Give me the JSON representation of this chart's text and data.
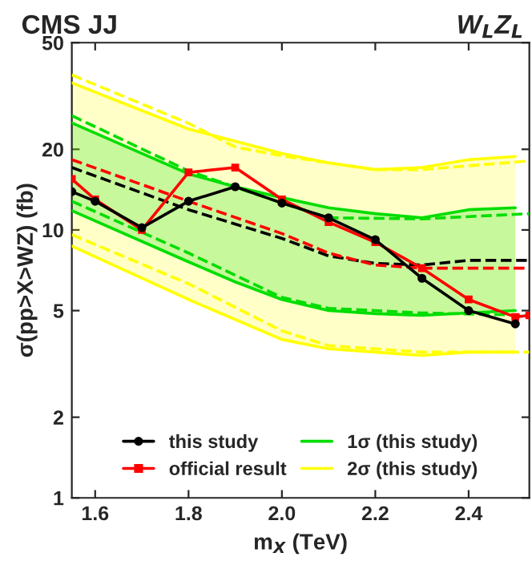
{
  "chart_data": {
    "type": "line",
    "title": "CMS JJ",
    "annotations": [
      "W$_{L}$Z$_{L}$"
    ],
    "xlabel": "m$_{X}$ (TeV)",
    "ylabel": "σ(pp>X>WZ) (fb)",
    "log": true,
    "xlim": [
      1.55,
      2.53
    ],
    "xticks": [
      1.6,
      1.8,
      {
        "value": 2.0,
        "label": "2.0"
      },
      2.2,
      2.4
    ],
    "ylim": [
      1,
      50
    ],
    "yticks": [
      1,
      2,
      5,
      10,
      20,
      50
    ],
    "grid": false,
    "legend": "bottom",
    "series": [
      {
        "color": "#ffff00",
        "x": [
          1.55,
          1.8,
          2.0,
          2.1,
          2.2,
          2.3,
          2.4,
          2.5
        ],
        "values": [
          null,
          null,
          null,
          null,
          null,
          null,
          null,
          null
        ],
        "lower": [
          8.7,
          5.5,
          3.9,
          3.6,
          3.5,
          3.4,
          3.5,
          3.5
        ],
        "upper": [
          35.4,
          23.8,
          19.3,
          17.8,
          16.8,
          17.1,
          18.3,
          18.8
        ]
      },
      {
        "color": "#00dd00",
        "x": [
          1.55,
          1.8,
          1.9,
          2.0,
          2.1,
          2.2,
          2.3,
          2.4,
          2.5
        ],
        "values": [
          null,
          null,
          null,
          null,
          null,
          null,
          null,
          null,
          null
        ],
        "lower": [
          11.8,
          7.6,
          6.4,
          5.5,
          5.0,
          4.87,
          4.8,
          4.9,
          5.0
        ],
        "upper": [
          25.1,
          16.2,
          14.5,
          13.2,
          12.1,
          11.5,
          11.1,
          11.9,
          12.1
        ]
      },
      {
        "name": "2σ (this study)",
        "color": "#ffff00",
        "line_style": "solid",
        "marker": "none",
        "x": [
          1.55,
          1.8,
          2.0,
          2.1,
          2.2,
          2.3,
          2.4,
          2.5
        ],
        "values": [
          35.4,
          23.8,
          19.3,
          17.8,
          16.8,
          17.1,
          18.3,
          18.8
        ]
      },
      {
        "color": "#ffff00",
        "line_style": "solid",
        "marker": "none",
        "x": [
          1.55,
          1.8,
          2.0,
          2.1,
          2.2,
          2.3,
          2.4,
          2.5
        ],
        "values": [
          8.7,
          5.5,
          3.9,
          3.6,
          3.5,
          3.4,
          3.5,
          3.5
        ]
      },
      {
        "name": "1σ (this study)",
        "color": "#00dd00",
        "line_style": "solid",
        "marker": "none",
        "x": [
          1.55,
          1.8,
          1.9,
          2.0,
          2.1,
          2.2,
          2.3,
          2.4,
          2.5
        ],
        "values": [
          25.1,
          16.2,
          14.5,
          13.2,
          12.1,
          11.5,
          11.1,
          11.9,
          12.1
        ]
      },
      {
        "color": "#00dd00",
        "line_style": "solid",
        "marker": "none",
        "x": [
          1.55,
          1.8,
          1.9,
          2.0,
          2.1,
          2.2,
          2.3,
          2.4,
          2.5
        ],
        "values": [
          11.8,
          7.6,
          6.4,
          5.5,
          5.0,
          4.87,
          4.8,
          4.9,
          5.0
        ]
      },
      {
        "color": "#ffff00",
        "line_style": "dashed",
        "marker": "none",
        "x": [
          1.55,
          1.8,
          1.9,
          2.0,
          2.1,
          2.2,
          2.3,
          2.53
        ],
        "values": [
          37.9,
          25.0,
          20.4,
          18.9,
          17.8,
          16.8,
          16.8,
          18.1
        ]
      },
      {
        "color": "#ffff00",
        "line_style": "dashed",
        "marker": "none",
        "x": [
          1.55,
          1.8,
          2.0,
          2.1,
          2.3,
          2.53
        ],
        "values": [
          9.6,
          6.3,
          4.2,
          3.7,
          3.5,
          3.5
        ]
      },
      {
        "color": "#00dd00",
        "line_style": "dashed",
        "marker": "none",
        "x": [
          1.55,
          1.8,
          2.0,
          2.1,
          2.3,
          2.53
        ],
        "values": [
          26.7,
          16.6,
          12.6,
          11.1,
          11.0,
          11.5
        ]
      },
      {
        "color": "#00dd00",
        "line_style": "dashed",
        "marker": "none",
        "x": [
          1.55,
          1.8,
          2.0,
          2.1,
          2.3,
          2.53
        ],
        "values": [
          12.8,
          8.2,
          5.6,
          5.1,
          4.9,
          4.8
        ]
      },
      {
        "color": "#000000",
        "line_style": "dashed",
        "marker": "none",
        "x": [
          1.55,
          1.8,
          2.0,
          2.1,
          2.2,
          2.3,
          2.4,
          2.53
        ],
        "values": [
          17.1,
          11.9,
          9.3,
          8.0,
          7.5,
          7.4,
          7.7,
          7.7
        ]
      },
      {
        "color": "#ff0000",
        "line_style": "dashed",
        "marker": "none",
        "x": [
          1.55,
          1.8,
          2.0,
          2.1,
          2.2,
          2.3,
          2.4,
          2.53
        ],
        "values": [
          18.3,
          12.8,
          9.7,
          8.2,
          7.4,
          7.2,
          7.2,
          7.2
        ]
      },
      {
        "name": "this study",
        "color": "#000000",
        "line_style": "solid",
        "marker": "circle",
        "x": [
          1.55,
          1.6,
          1.7,
          1.8,
          1.9,
          2.0,
          2.1,
          2.2,
          2.3,
          2.4,
          2.5
        ],
        "values": [
          13.9,
          12.8,
          10.2,
          12.8,
          14.5,
          12.6,
          11.1,
          9.2,
          6.6,
          5.0,
          4.46
        ]
      },
      {
        "name": "official result",
        "color": "#ff0000",
        "line_style": "solid",
        "marker": "square",
        "x": [
          1.55,
          1.6,
          1.7,
          1.8,
          1.9,
          2.0,
          2.1,
          2.2,
          2.3,
          2.4,
          2.5,
          2.53
        ],
        "values": [
          15.5,
          13.0,
          10.0,
          16.4,
          17.1,
          13.0,
          10.7,
          9.0,
          7.2,
          5.5,
          4.73,
          4.8
        ]
      }
    ]
  }
}
